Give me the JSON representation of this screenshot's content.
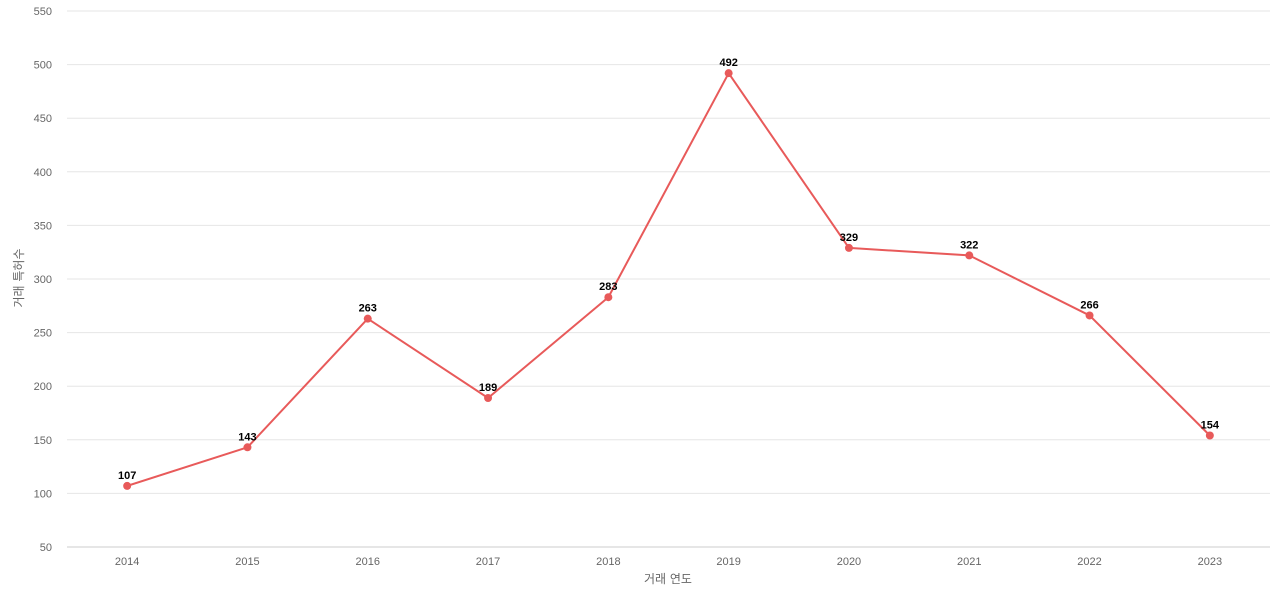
{
  "chart_data": {
    "type": "line",
    "categories": [
      "2014",
      "2015",
      "2016",
      "2017",
      "2018",
      "2019",
      "2020",
      "2021",
      "2022",
      "2023"
    ],
    "series": [
      {
        "values": [
          107,
          143,
          263,
          189,
          283,
          492,
          329,
          322,
          266,
          154
        ],
        "color": "#e85a5a"
      }
    ],
    "xlabel": "거래 연도",
    "ylabel": "거래 특허수",
    "ylim": [
      50,
      550
    ],
    "yticks": [
      50,
      100,
      150,
      200,
      250,
      300,
      350,
      400,
      450,
      500,
      550
    ],
    "grid": true,
    "data_labels": true
  }
}
